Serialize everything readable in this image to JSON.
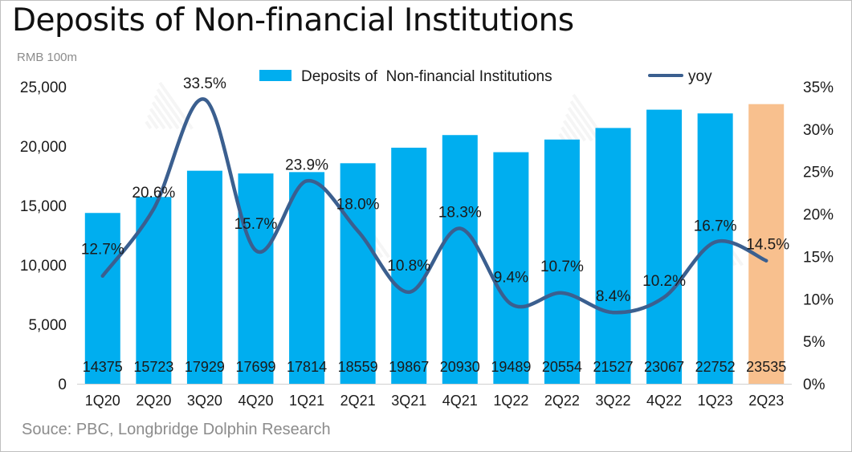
{
  "title": "Deposits of  Non-financial Institutions",
  "unit_label": "RMB 100m",
  "source": "Souce: PBC, Longbridge Dolphin Research",
  "colors": {
    "bar": "#00aeef",
    "bar_forecast": "#f8c08e",
    "line": "#3b5f8f"
  },
  "chart_data": {
    "type": "bar",
    "categories": [
      "1Q20",
      "2Q20",
      "3Q20",
      "4Q20",
      "1Q21",
      "2Q21",
      "3Q21",
      "4Q21",
      "1Q22",
      "2Q22",
      "3Q22",
      "4Q22",
      "1Q23",
      "2Q23"
    ],
    "series": [
      {
        "name": "Deposits of  Non-financial Institutions",
        "type": "bar",
        "axis": "left",
        "values": [
          14375,
          15723,
          17929,
          17699,
          17814,
          18559,
          19867,
          20930,
          19489,
          20554,
          21527,
          23067,
          22752,
          23535
        ],
        "labels": [
          "14375",
          "15723",
          "17929",
          "17699",
          "17814",
          "18559",
          "19867",
          "20930",
          "19489",
          "20554",
          "21527",
          "23067",
          "22752",
          "23535"
        ],
        "highlight_index": 13
      },
      {
        "name": "yoy",
        "type": "line",
        "axis": "right",
        "values": [
          12.7,
          20.6,
          33.5,
          15.7,
          23.9,
          18.0,
          10.8,
          18.3,
          9.4,
          10.7,
          8.4,
          10.2,
          16.7,
          14.5
        ],
        "labels": [
          "12.7%",
          "20.6%",
          "33.5%",
          "15.7%",
          "23.9%",
          "18.0%",
          "10.8%",
          "18.3%",
          "9.4%",
          "10.7%",
          "8.4%",
          "10.2%",
          "16.7%",
          "14.5%"
        ]
      }
    ],
    "ylim": [
      0,
      25000
    ],
    "y_ticks": [
      0,
      5000,
      10000,
      15000,
      20000,
      25000
    ],
    "y_tick_labels": [
      "0",
      "5,000",
      "10,000",
      "15,000",
      "20,000",
      "25,000"
    ],
    "y2lim": [
      0,
      35
    ],
    "y2_ticks": [
      0,
      5,
      10,
      15,
      20,
      25,
      30,
      35
    ],
    "y2_tick_labels": [
      "0%",
      "5%",
      "10%",
      "15%",
      "20%",
      "25%",
      "30%",
      "35%"
    ],
    "legend_position": "top",
    "grid": false
  }
}
